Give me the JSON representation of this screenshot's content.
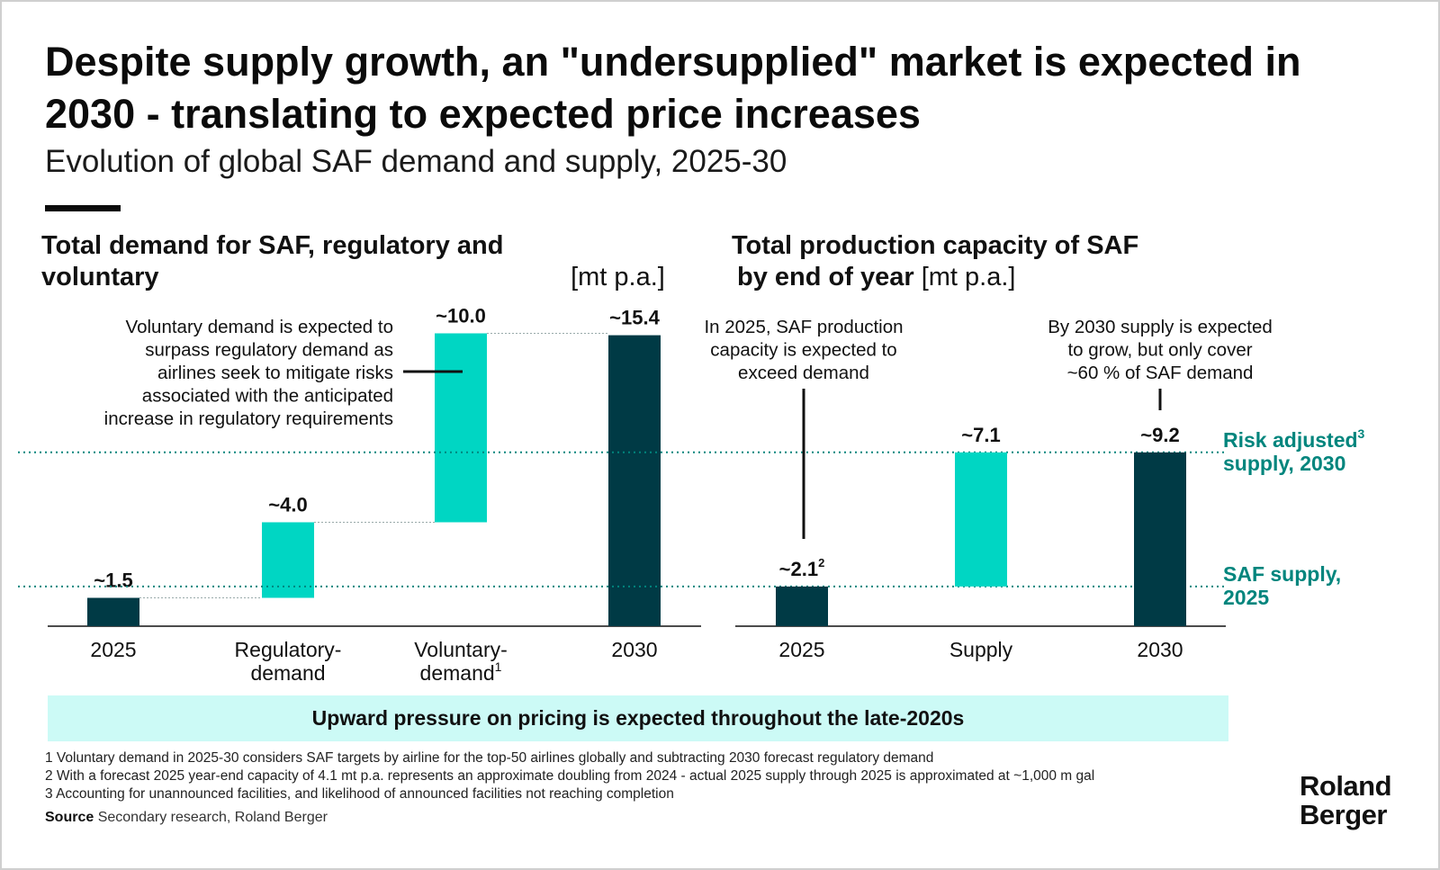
{
  "title": "Despite supply growth, an \"undersupplied\" market is expected in 2030 - translating to expected price increases",
  "subtitle": "Evolution of global SAF demand and supply, 2025-30",
  "colors": {
    "dark": "#003a45",
    "teal": "#00d6c3",
    "label_teal": "#00857d",
    "banner": "#ccfaf6"
  },
  "chart_data": [
    {
      "type": "bar",
      "title_bold": "Total demand for SAF, regulatory and voluntary",
      "title_unit": "[mt p.a.]",
      "categories": [
        "2025",
        "Regulatory-demand",
        "Voluntary-demand",
        "2030"
      ],
      "category_lines": [
        [
          "2025"
        ],
        [
          "Regulatory-",
          "demand"
        ],
        [
          "Voluntary-",
          "demand"
        ],
        [
          "2030"
        ]
      ],
      "category_sup": [
        "",
        "",
        "1",
        ""
      ],
      "bars": [
        {
          "base": 0,
          "value": 1.5,
          "kind": "total",
          "label": "~1.5"
        },
        {
          "base": 1.5,
          "value": 4.0,
          "kind": "increment",
          "label": "~4.0"
        },
        {
          "base": 5.5,
          "value": 10.0,
          "kind": "increment",
          "label": "~10.0"
        },
        {
          "base": 0,
          "value": 15.4,
          "kind": "total",
          "label": "~15.4"
        }
      ],
      "annotation": [
        "Voluntary demand is expected to",
        "surpass regulatory demand as",
        "airlines seek to mitigate risks",
        "associated with the anticipated",
        "increase in regulatory requirements"
      ]
    },
    {
      "type": "bar",
      "title_bold_lines": [
        "Total production capacity of SAF",
        "by end of year"
      ],
      "title_unit": "[mt p.a.]",
      "categories": [
        "2025",
        "Supply",
        "2030"
      ],
      "bars": [
        {
          "base": 0,
          "value": 2.1,
          "kind": "total",
          "label": "~2.1",
          "sup": "2"
        },
        {
          "base": 2.1,
          "value": 7.1,
          "kind": "increment",
          "label": "~7.1"
        },
        {
          "base": 0,
          "value": 9.2,
          "kind": "total",
          "label": "~9.2"
        }
      ],
      "annotation_left": [
        "In 2025, SAF production",
        "capacity is expected to",
        "exceed demand"
      ],
      "annotation_right": [
        "By 2030 supply is expected",
        "to grow, but only cover",
        "~60 % of SAF demand"
      ],
      "reference_lines": [
        {
          "value": 9.2,
          "label_lines": [
            "Risk adjusted",
            "supply, 2030"
          ],
          "sup": "3"
        },
        {
          "value": 2.1,
          "label_lines": [
            "SAF supply,",
            "2025"
          ]
        }
      ]
    }
  ],
  "banner": "Upward pressure on pricing is expected throughout the late-2020s",
  "footnotes": [
    "1  Voluntary demand in 2025-30 considers SAF targets by airline for the top-50 airlines globally and subtracting 2030 forecast regulatory demand",
    "2  With a forecast 2025 year-end capacity of 4.1 mt p.a. represents an approximate doubling from 2024 - actual 2025 supply through 2025 is approximated at ~1,000 m gal",
    "3  Accounting for unannounced facilities, and likelihood of announced facilities not reaching completion"
  ],
  "source": {
    "label": "Source",
    "text": "Secondary research, Roland Berger"
  },
  "logo": [
    "Roland",
    "Berger"
  ]
}
